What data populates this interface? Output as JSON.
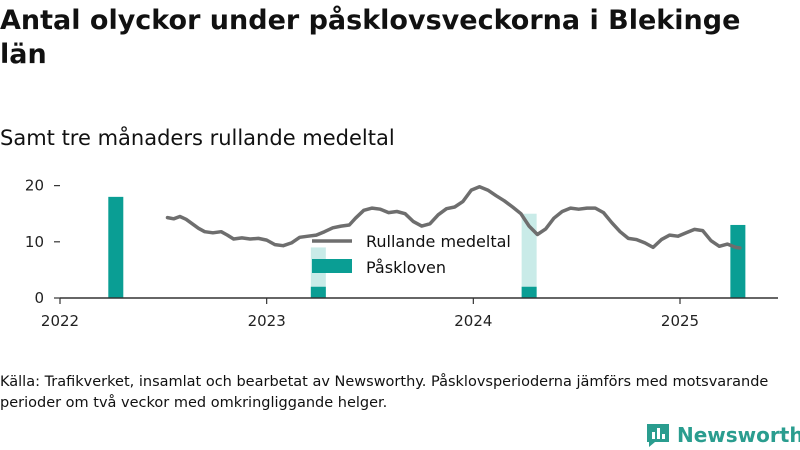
{
  "title": "Antal olyckor under påsklovsveckorna i Blekinge län",
  "subtitle": "Samt tre månaders rullande medeltal",
  "source": "Källa: Trafikverket, insamlat och bearbetat av Newsworthy. Påsklovsperioderna jämförs med motsvarande perioder om två veckor med omkringliggande helger.",
  "logo": {
    "text": "Newsworthy",
    "icon": "newsworthy-bar-icon",
    "color": "#2a9d8f"
  },
  "colors": {
    "line": "#6e6e6e",
    "bar": "#0a9e94",
    "bar_light": "#c9ebe8",
    "axis": "#333333"
  },
  "chart_data": {
    "type": "bar+line",
    "title": "Antal olyckor under påsklovsveckorna i Blekinge län",
    "subtitle": "Samt tre månaders rullande medeltal",
    "xlabel": "",
    "ylabel": "",
    "x_ticks": [
      2022,
      2023,
      2024,
      2025
    ],
    "y_ticks": [
      0,
      10,
      20
    ],
    "xlim": [
      2022.0,
      2025.48
    ],
    "ylim": [
      0,
      21
    ],
    "grid": false,
    "legend": {
      "placement": "center-top",
      "entries": [
        "Rullande medeltal",
        "Påskloven"
      ]
    },
    "series": [
      {
        "name": "Rullande medeltal",
        "type": "line",
        "points": [
          [
            2022.52,
            14.3
          ],
          [
            2022.55,
            14.1
          ],
          [
            2022.58,
            14.5
          ],
          [
            2022.61,
            14.0
          ],
          [
            2022.64,
            13.2
          ],
          [
            2022.67,
            12.4
          ],
          [
            2022.7,
            11.8
          ],
          [
            2022.74,
            11.6
          ],
          [
            2022.78,
            11.8
          ],
          [
            2022.81,
            11.2
          ],
          [
            2022.84,
            10.5
          ],
          [
            2022.88,
            10.7
          ],
          [
            2022.92,
            10.5
          ],
          [
            2022.96,
            10.6
          ],
          [
            2023.0,
            10.3
          ],
          [
            2023.04,
            9.5
          ],
          [
            2023.08,
            9.3
          ],
          [
            2023.12,
            9.8
          ],
          [
            2023.16,
            10.8
          ],
          [
            2023.2,
            11.0
          ],
          [
            2023.24,
            11.2
          ],
          [
            2023.28,
            11.8
          ],
          [
            2023.32,
            12.5
          ],
          [
            2023.36,
            12.8
          ],
          [
            2023.4,
            13.0
          ],
          [
            2023.43,
            14.2
          ],
          [
            2023.47,
            15.6
          ],
          [
            2023.51,
            16.0
          ],
          [
            2023.55,
            15.8
          ],
          [
            2023.59,
            15.2
          ],
          [
            2023.63,
            15.4
          ],
          [
            2023.67,
            15.0
          ],
          [
            2023.71,
            13.6
          ],
          [
            2023.75,
            12.8
          ],
          [
            2023.79,
            13.2
          ],
          [
            2023.83,
            14.8
          ],
          [
            2023.87,
            15.9
          ],
          [
            2023.91,
            16.2
          ],
          [
            2023.95,
            17.2
          ],
          [
            2023.99,
            19.2
          ],
          [
            2024.03,
            19.8
          ],
          [
            2024.07,
            19.2
          ],
          [
            2024.11,
            18.2
          ],
          [
            2024.15,
            17.3
          ],
          [
            2024.19,
            16.2
          ],
          [
            2024.23,
            15.0
          ],
          [
            2024.27,
            12.8
          ],
          [
            2024.31,
            11.3
          ],
          [
            2024.35,
            12.3
          ],
          [
            2024.39,
            14.2
          ],
          [
            2024.43,
            15.4
          ],
          [
            2024.47,
            16.0
          ],
          [
            2024.51,
            15.8
          ],
          [
            2024.55,
            16.0
          ],
          [
            2024.59,
            16.0
          ],
          [
            2024.63,
            15.2
          ],
          [
            2024.67,
            13.4
          ],
          [
            2024.71,
            11.8
          ],
          [
            2024.75,
            10.6
          ],
          [
            2024.79,
            10.4
          ],
          [
            2024.83,
            9.8
          ],
          [
            2024.87,
            9.0
          ],
          [
            2024.91,
            10.4
          ],
          [
            2024.95,
            11.2
          ],
          [
            2024.99,
            11.0
          ],
          [
            2025.03,
            11.6
          ],
          [
            2025.07,
            12.2
          ],
          [
            2025.11,
            12.0
          ],
          [
            2025.15,
            10.2
          ],
          [
            2025.19,
            9.2
          ],
          [
            2025.23,
            9.6
          ],
          [
            2025.27,
            9.0
          ],
          [
            2025.29,
            8.9
          ]
        ]
      },
      {
        "name": "Påskloven",
        "type": "bar",
        "bars": [
          {
            "x": 2022.27,
            "value": 18,
            "comparison": 0
          },
          {
            "x": 2023.25,
            "value": 2,
            "comparison": 9
          },
          {
            "x": 2024.27,
            "value": 2,
            "comparison": 15
          },
          {
            "x": 2025.28,
            "value": 13,
            "comparison": 0
          }
        ]
      }
    ]
  }
}
